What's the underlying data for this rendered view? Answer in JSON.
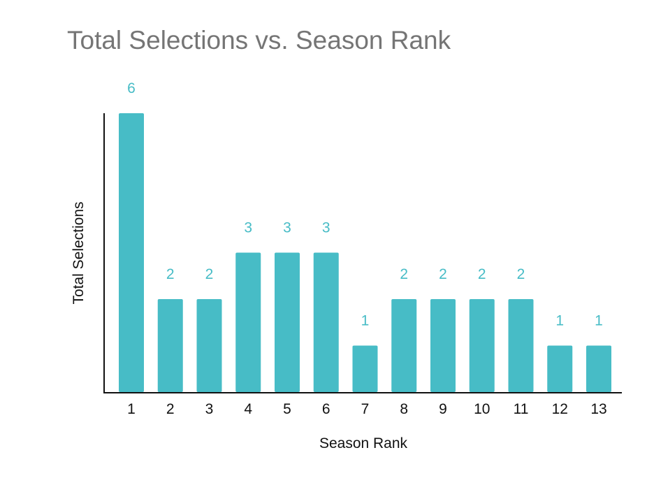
{
  "chart_data": {
    "type": "bar",
    "title": "Total Selections vs. Season Rank",
    "xlabel": "Season Rank",
    "ylabel": "Total Selections",
    "categories": [
      "1",
      "2",
      "3",
      "4",
      "5",
      "6",
      "7",
      "8",
      "9",
      "10",
      "11",
      "12",
      "13"
    ],
    "values": [
      6,
      2,
      2,
      3,
      3,
      3,
      1,
      2,
      2,
      2,
      2,
      1,
      1
    ],
    "data_labels": [
      "6",
      "2",
      "2",
      "3",
      "3",
      "3",
      "1",
      "2",
      "2",
      "2",
      "2",
      "1",
      "1"
    ],
    "ylim": [
      0,
      6
    ],
    "grid": false,
    "legend": "none",
    "colors": {
      "bar": "#47BCC6",
      "label": "#47BCC6",
      "axis": "#111111",
      "title": "#757575"
    }
  }
}
